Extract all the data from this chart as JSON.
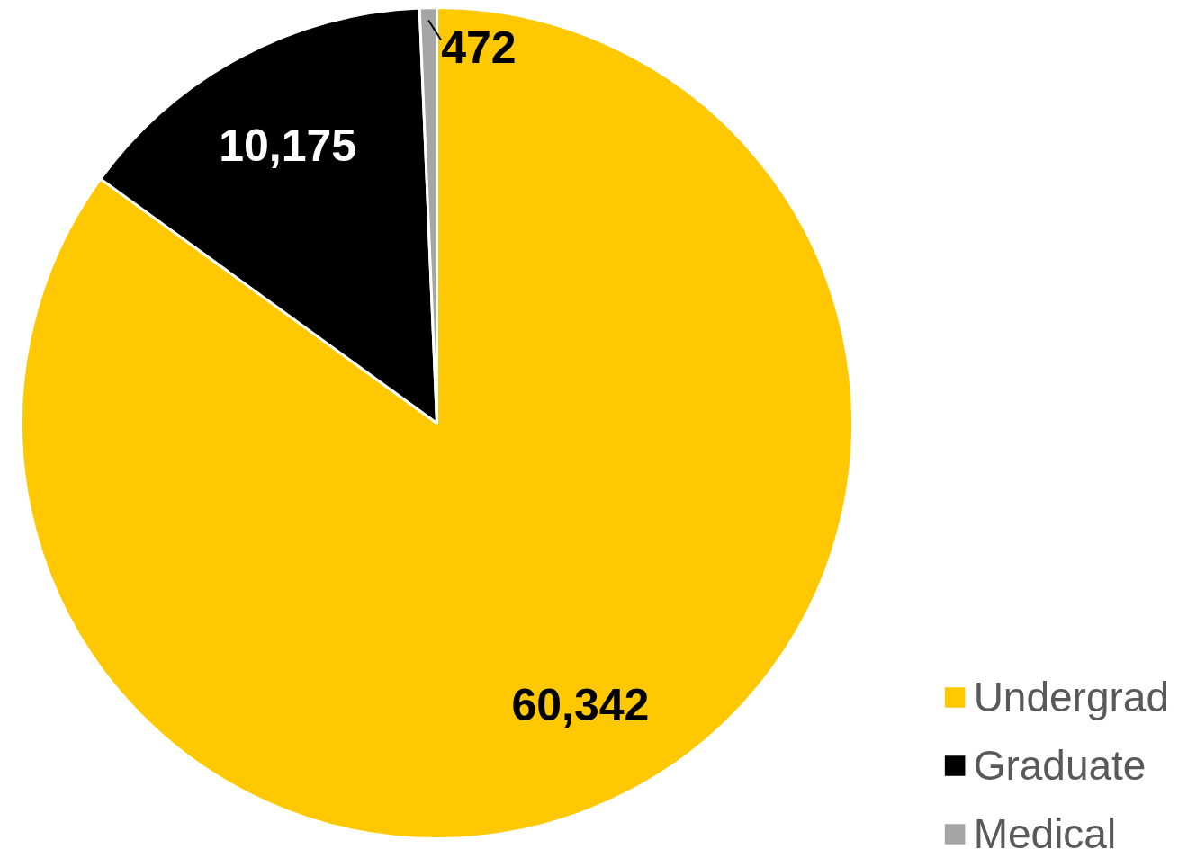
{
  "chart_data": {
    "type": "pie",
    "categories": [
      "Undergrad",
      "Graduate",
      "Medical"
    ],
    "values": [
      60342,
      10175,
      472
    ],
    "colors": [
      "#ffc800",
      "#000000",
      "#a5a5a5"
    ],
    "value_labels": [
      "60,342",
      "10,175",
      "472"
    ],
    "legend": "bottom right"
  }
}
